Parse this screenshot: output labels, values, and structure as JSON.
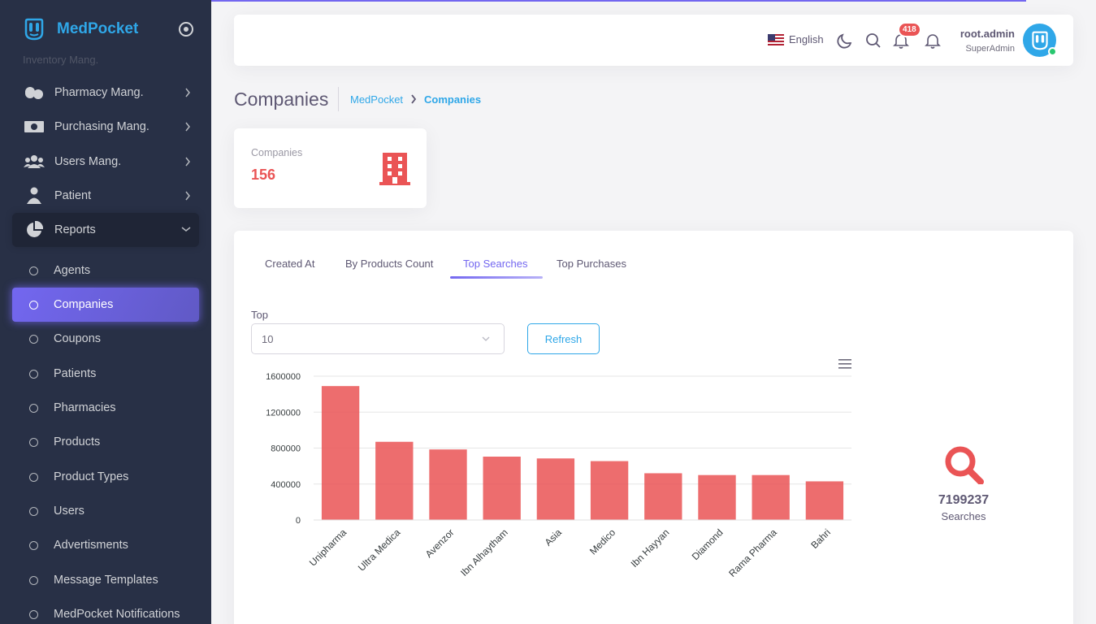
{
  "brand": {
    "name": "MedPocket"
  },
  "sidebar": {
    "faded_item": "Inventory Mang.",
    "items": [
      {
        "label": "Pharmacy Mang.",
        "icon": "pills-icon"
      },
      {
        "label": "Purchasing Mang.",
        "icon": "money-icon"
      },
      {
        "label": "Users Mang.",
        "icon": "users-icon"
      },
      {
        "label": "Patient",
        "icon": "patient-icon"
      },
      {
        "label": "Reports",
        "icon": "pie-chart-icon"
      }
    ],
    "sub_items": [
      {
        "label": "Agents"
      },
      {
        "label": "Companies"
      },
      {
        "label": "Coupons"
      },
      {
        "label": "Patients"
      },
      {
        "label": "Pharmacies"
      },
      {
        "label": "Products"
      },
      {
        "label": "Product Types"
      },
      {
        "label": "Users"
      },
      {
        "label": "Advertisments"
      },
      {
        "label": "Message Templates"
      },
      {
        "label": "MedPocket Notifications"
      }
    ],
    "active_sub": "Companies"
  },
  "navbar": {
    "language": "English",
    "notification_count": "418",
    "user_name": "root.admin",
    "user_role": "SuperAdmin"
  },
  "page": {
    "title": "Companies",
    "breadcrumb_home": "MedPocket",
    "breadcrumb_current": "Companies"
  },
  "stat": {
    "label": "Companies",
    "value": "156"
  },
  "tabs": [
    {
      "label": "Created At"
    },
    {
      "label": "By Products Count"
    },
    {
      "label": "Top Searches"
    },
    {
      "label": "Top Purchases"
    }
  ],
  "active_tab": "Top Searches",
  "filter": {
    "label": "Top",
    "value": "10",
    "refresh_label": "Refresh"
  },
  "summary": {
    "value": "7199237",
    "label": "Searches"
  },
  "colors": {
    "accent": "#7367f0",
    "bar": "#ea5455",
    "brand": "#2fa7e8",
    "sidebar": "#283046"
  },
  "chart_data": {
    "type": "bar",
    "categories": [
      "Unipharma",
      "Ultra Medica",
      "Avenzor",
      "Ibn Alhaytham",
      "Asia",
      "Medico",
      "Ibn Hayyan",
      "Diamond",
      "Rama Pharma",
      "Bahri"
    ],
    "values": [
      1490000,
      870000,
      785000,
      705000,
      685000,
      655000,
      520000,
      500000,
      500000,
      430000
    ],
    "yticks": [
      "0",
      "400000",
      "800000",
      "1200000",
      "1600000"
    ],
    "ylim": [
      0,
      1600000
    ],
    "grid": true
  }
}
